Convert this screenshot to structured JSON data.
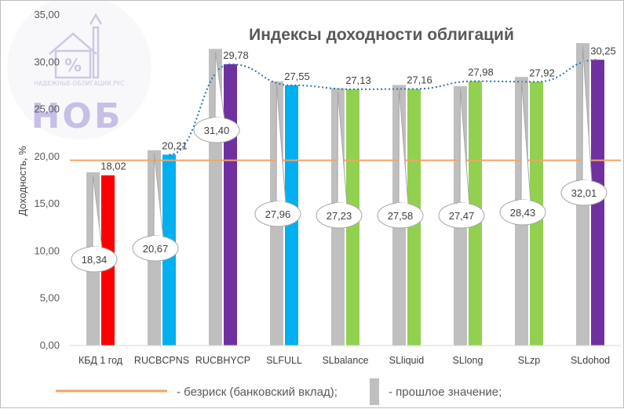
{
  "chart_data": {
    "type": "bar",
    "title": "Индексы доходности облигаций",
    "ylabel": "Доходность, %",
    "xlabel": "",
    "ylim": [
      0,
      35
    ],
    "yticks": [
      "0,00",
      "5,00",
      "10,00",
      "15,00",
      "20,00",
      "25,00",
      "30,00",
      "35,00"
    ],
    "categories": [
      "КБД 1 год",
      "RUCBCPNS",
      "RUCBHYCP",
      "SLFULL",
      "SLbalance",
      "SLliquid",
      "SLlong",
      "SLzp",
      "SLdohod"
    ],
    "previous_values": [
      18.34,
      20.67,
      31.4,
      27.96,
      27.23,
      27.58,
      27.47,
      28.43,
      32.01
    ],
    "previous_labels": [
      "18,34",
      "20,67",
      "31,40",
      "27,96",
      "27,23",
      "27,58",
      "27,47",
      "28,43",
      "32,01"
    ],
    "values": [
      18.02,
      20.21,
      29.78,
      27.55,
      27.13,
      27.16,
      27.98,
      27.92,
      30.25
    ],
    "value_labels": [
      "18,02",
      "20,21",
      "29,78",
      "27,55",
      "27,13",
      "27,16",
      "27,98",
      "27,92",
      "30,25"
    ],
    "bar_colors": [
      "#ff0000",
      "#00b0f0",
      "#7030a0",
      "#00b0f0",
      "#92d050",
      "#92d050",
      "#92d050",
      "#92d050",
      "#7030a0"
    ],
    "previous_color": "#bfbfbf",
    "risk_free_rate": 19.6,
    "risk_free_color": "#f4a460",
    "trendline": {
      "style": "dotted",
      "color": "#2e75b6",
      "from_category": 1
    },
    "legend": {
      "placement": "bottom",
      "items": [
        {
          "label": "- безриск (банковский вклад);",
          "marker": "line",
          "color": "#f4a460"
        },
        {
          "label": "- прошлое значение;",
          "marker": "bar",
          "color": "#bfbfbf"
        }
      ]
    },
    "grid": false
  },
  "watermark": {
    "site": "НАДЕЖНЫЕ-ОБЛИГАЦИИ.РУС",
    "acronym": "НОБ"
  }
}
